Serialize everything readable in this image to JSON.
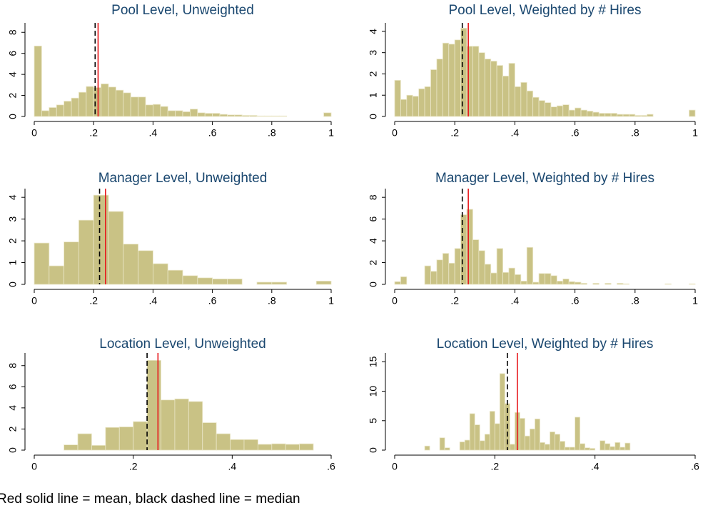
{
  "chart_data": [
    {
      "type": "histogram",
      "title": "Pool Level, Unweighted",
      "color": "#c9c285",
      "mean_color": "#e8171c",
      "median_color": "#000000",
      "bins": [
        0,
        0.025,
        0.05,
        0.075,
        0.1,
        0.125,
        0.15,
        0.175,
        0.2,
        0.225,
        0.25,
        0.275,
        0.3,
        0.325,
        0.35,
        0.375,
        0.4,
        0.425,
        0.45,
        0.475,
        0.5,
        0.525,
        0.55,
        0.575,
        0.6,
        0.625,
        0.65,
        0.675,
        0.7,
        0.725,
        0.75,
        0.775,
        0.8,
        0.825,
        0.85,
        0.875,
        0.9,
        0.925,
        0.95,
        0.975,
        1
      ],
      "values": [
        6.7,
        0.55,
        0.85,
        1.1,
        1.45,
        1.75,
        2.3,
        2.85,
        2.75,
        3.1,
        2.8,
        2.5,
        2.25,
        1.85,
        1.85,
        1.1,
        1.15,
        0.95,
        0.55,
        0.55,
        0.45,
        0.7,
        0.35,
        0.3,
        0.3,
        0.2,
        0.15,
        0.15,
        0.1,
        0.1,
        0.05,
        0.05,
        0.05,
        0.05,
        0,
        0,
        0,
        0,
        0,
        0.35
      ],
      "mean": 0.215,
      "median": 0.205,
      "xlim": [
        0,
        1
      ],
      "xticks": [
        0,
        {
          "value": 0.2,
          "label": ".2"
        },
        {
          "value": 0.4,
          "label": ".4"
        },
        {
          "value": 0.6,
          "label": ".6"
        },
        {
          "value": 0.8,
          "label": ".8"
        },
        1
      ],
      "ylim": [
        0,
        8.9
      ],
      "yticks": [
        0,
        2,
        4,
        6,
        8
      ]
    },
    {
      "type": "histogram",
      "title": "Pool Level, Weighted by # Hires",
      "color": "#c9c285",
      "mean_color": "#e8171c",
      "median_color": "#000000",
      "bins": [
        0,
        0.02,
        0.04,
        0.06,
        0.08,
        0.1,
        0.12,
        0.14,
        0.16,
        0.18,
        0.2,
        0.22,
        0.24,
        0.26,
        0.28,
        0.3,
        0.32,
        0.34,
        0.36,
        0.38,
        0.4,
        0.42,
        0.44,
        0.46,
        0.48,
        0.5,
        0.52,
        0.54,
        0.56,
        0.58,
        0.6,
        0.62,
        0.64,
        0.66,
        0.68,
        0.7,
        0.72,
        0.74,
        0.76,
        0.78,
        0.8,
        0.82,
        0.84,
        0.86,
        0.88,
        0.9,
        0.92,
        0.94,
        0.96,
        0.98,
        1
      ],
      "values": [
        1.7,
        0.8,
        1.0,
        0.95,
        1.3,
        1.4,
        2.2,
        2.7,
        3.45,
        3.4,
        3.6,
        4.15,
        3.3,
        3.3,
        3.0,
        2.7,
        2.6,
        2.4,
        1.9,
        2.5,
        1.4,
        1.6,
        1.2,
        0.9,
        0.75,
        0.65,
        0.45,
        0.5,
        0.55,
        0.3,
        0.4,
        0.3,
        0.25,
        0.2,
        0.15,
        0.15,
        0.15,
        0.1,
        0.1,
        0.1,
        0.05,
        0.05,
        0.1,
        0,
        0,
        0,
        0,
        0,
        0,
        0.3
      ],
      "mean": 0.245,
      "median": 0.225,
      "xlim": [
        0,
        1
      ],
      "xticks": [
        0,
        {
          "value": 0.2,
          "label": ".2"
        },
        {
          "value": 0.4,
          "label": ".4"
        },
        {
          "value": 0.6,
          "label": ".6"
        },
        {
          "value": 0.8,
          "label": ".8"
        },
        1
      ],
      "ylim": [
        0,
        4.4
      ],
      "yticks": [
        0,
        1,
        2,
        3,
        4
      ]
    },
    {
      "type": "histogram",
      "title": "Manager Level, Unweighted",
      "color": "#c9c285",
      "mean_color": "#e8171c",
      "median_color": "#000000",
      "bins": [
        0,
        0.05,
        0.1,
        0.15,
        0.2,
        0.25,
        0.3,
        0.35,
        0.4,
        0.45,
        0.5,
        0.55,
        0.6,
        0.65,
        0.7,
        0.75,
        0.8,
        0.85,
        0.9,
        0.95,
        1
      ],
      "values": [
        1.9,
        0.85,
        1.95,
        2.95,
        4.1,
        3.35,
        1.85,
        1.55,
        0.95,
        0.65,
        0.4,
        0.3,
        0.25,
        0.25,
        0,
        0.1,
        0.1,
        0,
        0,
        0.15
      ],
      "mean": 0.24,
      "median": 0.22,
      "xlim": [
        0,
        1
      ],
      "xticks": [
        0,
        {
          "value": 0.2,
          "label": ".2"
        },
        {
          "value": 0.4,
          "label": ".4"
        },
        {
          "value": 0.6,
          "label": ".6"
        },
        {
          "value": 0.8,
          "label": ".8"
        },
        1
      ],
      "ylim": [
        0,
        4.4
      ],
      "yticks": [
        0,
        1,
        2,
        3,
        4
      ]
    },
    {
      "type": "histogram",
      "title": "Manager Level, Weighted by # Hires",
      "color": "#c9c285",
      "mean_color": "#e8171c",
      "median_color": "#000000",
      "bins": [
        0,
        0.02,
        0.04,
        0.06,
        0.08,
        0.1,
        0.12,
        0.14,
        0.16,
        0.18,
        0.2,
        0.22,
        0.24,
        0.26,
        0.28,
        0.3,
        0.32,
        0.34,
        0.36,
        0.38,
        0.4,
        0.42,
        0.44,
        0.46,
        0.48,
        0.5,
        0.52,
        0.54,
        0.56,
        0.58,
        0.6,
        0.62,
        0.64,
        0.66,
        0.68,
        0.7,
        0.72,
        0.74,
        0.76,
        0.78,
        0.8,
        0.82,
        0.84,
        0.86,
        0.88,
        0.9,
        0.92,
        0.94,
        0.96,
        0.98,
        1
      ],
      "values": [
        0.25,
        0.7,
        0,
        0,
        0,
        1.7,
        1.2,
        2.25,
        2.85,
        1.95,
        3.3,
        6.4,
        6.9,
        4.1,
        3.1,
        1.85,
        1.05,
        3.3,
        1.1,
        1.5,
        0.9,
        0.3,
        3.4,
        0.2,
        1.0,
        1.0,
        0.8,
        0.3,
        0.5,
        0.25,
        0.2,
        0.1,
        0,
        0.1,
        0,
        0.1,
        0,
        0.1,
        0.05,
        0,
        0,
        0,
        0,
        0,
        0,
        0.05,
        0,
        0,
        0,
        0.05
      ],
      "mean": 0.245,
      "median": 0.225,
      "xlim": [
        0,
        1
      ],
      "xticks": [
        0,
        {
          "value": 0.2,
          "label": ".2"
        },
        {
          "value": 0.4,
          "label": ".4"
        },
        {
          "value": 0.6,
          "label": ".6"
        },
        {
          "value": 0.8,
          "label": ".8"
        },
        1
      ],
      "ylim": [
        0,
        8.8
      ],
      "yticks": [
        0,
        2,
        4,
        6,
        8
      ]
    },
    {
      "type": "histogram",
      "title": "Location Level, Unweighted",
      "color": "#c9c285",
      "mean_color": "#e8171c",
      "median_color": "#000000",
      "bins": [
        0.06,
        0.088,
        0.116,
        0.144,
        0.172,
        0.2,
        0.228,
        0.256,
        0.284,
        0.312,
        0.34,
        0.368,
        0.396,
        0.424,
        0.452,
        0.48,
        0.508,
        0.536,
        0.564
      ],
      "values": [
        0.5,
        1.55,
        0.45,
        2.15,
        2.2,
        2.7,
        8.5,
        4.75,
        4.85,
        4.6,
        2.6,
        1.55,
        1.0,
        1.0,
        0.55,
        0.6,
        0.55,
        0.6
      ],
      "mean": 0.25,
      "median": 0.228,
      "xlim": [
        0,
        0.6
      ],
      "xticks": [
        0,
        {
          "value": 0.2,
          "label": ".2"
        },
        {
          "value": 0.4,
          "label": ".4"
        },
        {
          "value": 0.6,
          "label": ".6"
        }
      ],
      "ylim": [
        0,
        9.2
      ],
      "yticks": [
        0,
        2,
        4,
        6,
        8
      ]
    },
    {
      "type": "histogram",
      "title": "Location Level, Weighted by # Hires",
      "color": "#c9c285",
      "mean_color": "#e8171c",
      "median_color": "#000000",
      "bins": [
        0.06,
        0.07,
        0.08,
        0.09,
        0.1,
        0.11,
        0.12,
        0.13,
        0.14,
        0.15,
        0.16,
        0.17,
        0.18,
        0.19,
        0.2,
        0.21,
        0.22,
        0.23,
        0.24,
        0.25,
        0.26,
        0.27,
        0.28,
        0.29,
        0.3,
        0.31,
        0.32,
        0.33,
        0.34,
        0.35,
        0.36,
        0.37,
        0.38,
        0.39,
        0.4,
        0.41,
        0.42,
        0.43,
        0.44,
        0.45,
        0.46,
        0.47,
        0.48
      ],
      "values": [
        0.7,
        0,
        0,
        2.1,
        0.4,
        0,
        0,
        1.4,
        1.7,
        6.2,
        4.3,
        1.6,
        2.7,
        6.6,
        4.5,
        13.0,
        7.9,
        1.0,
        6.4,
        5.4,
        2.4,
        3.6,
        5.3,
        1.3,
        1.0,
        3.1,
        2.7,
        1.5,
        0.5,
        0.5,
        5.6,
        1.1,
        0.4,
        0.3,
        0,
        1.6,
        1.1,
        0.6,
        1.3,
        0.5,
        1.2,
        0
      ],
      "mean": 0.245,
      "median": 0.225,
      "xlim": [
        0,
        0.6
      ],
      "xticks": [
        0,
        {
          "value": 0.2,
          "label": ".2"
        },
        {
          "value": 0.4,
          "label": ".4"
        },
        {
          "value": 0.6,
          "label": ".6"
        }
      ],
      "ylim": [
        0,
        16.5
      ],
      "yticks": [
        0,
        5,
        10,
        15
      ]
    }
  ],
  "caption": "Red solid line = mean, black dashed line = median"
}
